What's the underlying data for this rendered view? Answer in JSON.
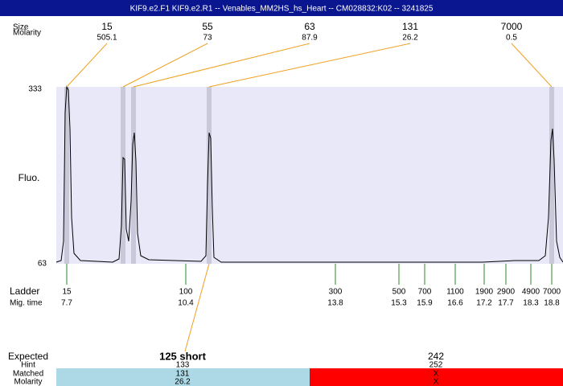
{
  "header": {
    "title": "KIF9.e2.F1  KIF9.e2.R1 -- Venables_MM2HS_hs_Heart -- CM028832:K02 -- 3241825"
  },
  "peaks": {
    "size_label": "Size",
    "molarity_label": "Molarity",
    "items": [
      {
        "size": "15",
        "molarity": "505.1"
      },
      {
        "size": "55",
        "molarity": "73"
      },
      {
        "size": "63",
        "molarity": "87.9"
      },
      {
        "size": "131",
        "molarity": "26.2"
      },
      {
        "size": "7000",
        "molarity": "0.5"
      }
    ]
  },
  "axis": {
    "label": "Fluo.",
    "top": "333",
    "bottom": "63"
  },
  "ladder": {
    "label": "Ladder",
    "time_label": "Mig. time",
    "items": [
      {
        "size": "15",
        "time": "7.7"
      },
      {
        "size": "100",
        "time": "10.4"
      },
      {
        "size": "300",
        "time": "13.8"
      },
      {
        "size": "500",
        "time": "15.3"
      },
      {
        "size": "700",
        "time": "15.9"
      },
      {
        "size": "1100",
        "time": "16.6"
      },
      {
        "size": "1900",
        "time": "17.2"
      },
      {
        "size": "2900",
        "time": "17.7"
      },
      {
        "size": "4900",
        "time": "18.3"
      },
      {
        "size": "7000",
        "time": "18.8"
      }
    ]
  },
  "results": {
    "labels": [
      "Expected",
      "Hint",
      "Matched",
      "Molarity"
    ],
    "left": [
      "125 short",
      "133",
      "131",
      "26.2"
    ],
    "right": [
      "242",
      "252",
      "X",
      "X"
    ]
  }
}
